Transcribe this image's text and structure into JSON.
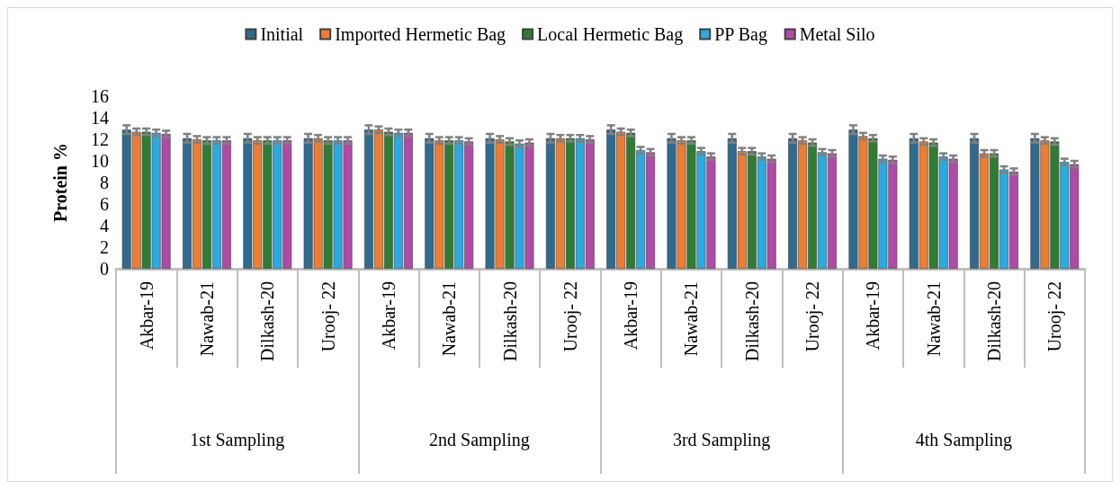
{
  "chart_data": {
    "type": "bar",
    "ylabel": "Protein %",
    "categories": [
      "Akbar-19",
      "Nawab-21",
      "Dilkash-20",
      "Urooj- 22",
      "Akbar-19",
      "Nawab-21",
      "Dilkash-20",
      "Urooj- 22",
      "Akbar-19",
      "Nawab-21",
      "Dilkash-20",
      "Urooj- 22",
      "Akbar-19",
      "Nawab-21",
      "Dilkash-20",
      "Urooj- 22"
    ],
    "annotations": [
      "1st Sampling",
      "2nd Sampling",
      "3rd Sampling",
      "4th Sampling"
    ],
    "series": [
      {
        "name": "Initial",
        "color": "#2e6b8f",
        "values": [
          12.9,
          12.1,
          12.1,
          12.1,
          12.9,
          12.1,
          12.1,
          12.1,
          12.9,
          12.1,
          12.1,
          12.1,
          12.9,
          12.1,
          12.1,
          12.1
        ],
        "errors": [
          0.4,
          0.4,
          0.4,
          0.4,
          0.4,
          0.4,
          0.4,
          0.4,
          0.4,
          0.4,
          0.4,
          0.4,
          0.4,
          0.4,
          0.4,
          0.4
        ]
      },
      {
        "name": "Imported Hermetic Bag",
        "color": "#ed7d31",
        "values": [
          12.7,
          12.0,
          11.9,
          12.1,
          12.9,
          11.9,
          12.0,
          12.1,
          12.7,
          11.9,
          10.9,
          11.9,
          12.3,
          11.8,
          10.7,
          11.9
        ],
        "errors": [
          0.3,
          0.3,
          0.3,
          0.3,
          0.3,
          0.3,
          0.3,
          0.3,
          0.3,
          0.3,
          0.3,
          0.3,
          0.3,
          0.3,
          0.3,
          0.3
        ]
      },
      {
        "name": "Local Hermetic Bag",
        "color": "#2e7d32",
        "values": [
          12.7,
          11.9,
          11.9,
          11.9,
          12.7,
          11.9,
          11.8,
          12.1,
          12.6,
          11.9,
          10.9,
          11.7,
          12.1,
          11.7,
          10.7,
          11.8
        ],
        "errors": [
          0.3,
          0.3,
          0.3,
          0.3,
          0.3,
          0.3,
          0.3,
          0.3,
          0.3,
          0.3,
          0.3,
          0.3,
          0.3,
          0.3,
          0.3,
          0.3
        ]
      },
      {
        "name": "PP Bag",
        "color": "#29abe2",
        "values": [
          12.6,
          11.9,
          11.9,
          11.9,
          12.6,
          11.9,
          11.6,
          12.1,
          11.0,
          10.9,
          10.4,
          10.8,
          10.2,
          10.4,
          9.2,
          9.9
        ],
        "errors": [
          0.3,
          0.3,
          0.3,
          0.3,
          0.3,
          0.3,
          0.3,
          0.3,
          0.3,
          0.3,
          0.3,
          0.3,
          0.3,
          0.3,
          0.3,
          0.3
        ]
      },
      {
        "name": "Metal Silo",
        "color": "#b04aa8",
        "values": [
          12.5,
          11.9,
          11.9,
          11.9,
          12.6,
          11.8,
          11.7,
          12.0,
          10.8,
          10.4,
          10.2,
          10.7,
          10.1,
          10.2,
          9.0,
          9.7
        ],
        "errors": [
          0.3,
          0.3,
          0.3,
          0.3,
          0.3,
          0.3,
          0.3,
          0.3,
          0.3,
          0.3,
          0.3,
          0.3,
          0.3,
          0.3,
          0.3,
          0.3
        ]
      }
    ],
    "ylim": [
      0,
      16
    ],
    "yticks": [
      0,
      2,
      4,
      6,
      8,
      10,
      12,
      14,
      16
    ],
    "grid": false,
    "legend": "top"
  }
}
